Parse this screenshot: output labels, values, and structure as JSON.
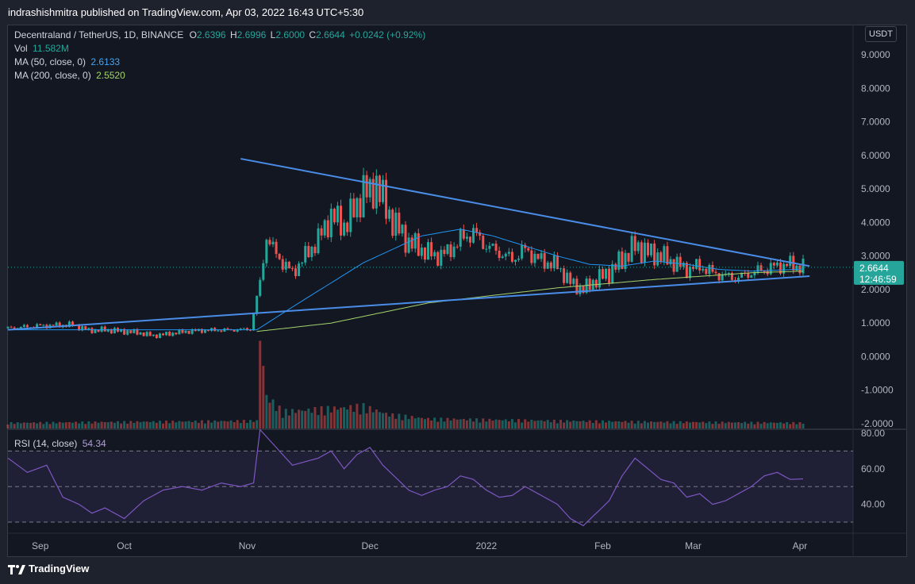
{
  "header": {
    "publisher": "indrashishmitra published on TradingView.com, Apr 03, 2022 16:43 UTC+5:30"
  },
  "legend": {
    "symbol": "Decentraland / TetherUS, 1D, BINANCE",
    "o_label": "O",
    "o_value": "2.6396",
    "h_label": "H",
    "h_value": "2.6996",
    "l_label": "L",
    "l_value": "2.6000",
    "c_label": "C",
    "c_value": "2.6644",
    "change": "+0.0242 (+0.92%)",
    "vol_label": "Vol",
    "vol_value": "11.582M",
    "ma50_label": "MA (50, close, 0)",
    "ma50_value": "2.6133",
    "ma200_label": "MA (200, close, 0)",
    "ma200_value": "2.5520",
    "rsi_label": "RSI (14, close)",
    "rsi_value": "54.34"
  },
  "currency": "USDT",
  "last_price": {
    "value": "2.6644",
    "countdown": "12:46:59"
  },
  "footer": {
    "brand": "TradingView"
  },
  "colors": {
    "up": "#26a69a",
    "down": "#ef5350",
    "ma50": "#2962ff",
    "ma200": "#a5d36b",
    "trendline": "#4a8de8",
    "rsi": "#7e57c2"
  },
  "chart_data": {
    "type": "candlestick",
    "price_axis": {
      "ticks": [
        "9.0000",
        "8.0000",
        "7.0000",
        "6.0000",
        "5.0000",
        "4.0000",
        "3.0000",
        "2.0000",
        "1.0000",
        "0.0000",
        "-1.0000",
        "-2.0000"
      ],
      "ylim": [
        -2.0,
        9.0
      ]
    },
    "rsi_axis": {
      "ticks": [
        "80.00",
        "60.00",
        "40.00"
      ],
      "ylim": [
        26,
        80
      ],
      "bands": [
        70,
        50,
        30
      ]
    },
    "time_axis": [
      "Sep",
      "Oct",
      "Nov",
      "Dec",
      "2022",
      "Feb",
      "Mar",
      "Apr"
    ],
    "price_path": [
      [
        0,
        0.85
      ],
      [
        10,
        0.92
      ],
      [
        20,
        0.95
      ],
      [
        25,
        0.78
      ],
      [
        30,
        0.8
      ],
      [
        40,
        0.72
      ],
      [
        45,
        0.62
      ],
      [
        55,
        0.75
      ],
      [
        60,
        0.78
      ],
      [
        70,
        0.8
      ],
      [
        75,
        0.82
      ],
      [
        78,
        2.2
      ],
      [
        80,
        3.6
      ],
      [
        82,
        3.2
      ],
      [
        85,
        2.8
      ],
      [
        88,
        2.5
      ],
      [
        92,
        3.0
      ],
      [
        96,
        3.5
      ],
      [
        100,
        4.2
      ],
      [
        104,
        3.9
      ],
      [
        108,
        4.5
      ],
      [
        110,
        5.0
      ],
      [
        112,
        4.8
      ],
      [
        114,
        5.2
      ],
      [
        117,
        4.4
      ],
      [
        120,
        3.9
      ],
      [
        124,
        3.4
      ],
      [
        128,
        3.2
      ],
      [
        132,
        3.0
      ],
      [
        136,
        3.1
      ],
      [
        140,
        3.5
      ],
      [
        144,
        3.7
      ],
      [
        148,
        3.3
      ],
      [
        152,
        3.1
      ],
      [
        156,
        2.9
      ],
      [
        160,
        3.2
      ],
      [
        164,
        2.9
      ],
      [
        170,
        2.7
      ],
      [
        174,
        2.2
      ],
      [
        178,
        2.0
      ],
      [
        182,
        2.3
      ],
      [
        186,
        2.5
      ],
      [
        190,
        2.9
      ],
      [
        194,
        3.3
      ],
      [
        198,
        3.1
      ],
      [
        202,
        3.0
      ],
      [
        206,
        2.8
      ],
      [
        210,
        2.6
      ],
      [
        214,
        2.7
      ],
      [
        218,
        2.5
      ],
      [
        222,
        2.4
      ],
      [
        226,
        2.35
      ],
      [
        230,
        2.5
      ],
      [
        234,
        2.6
      ],
      [
        238,
        2.7
      ],
      [
        242,
        2.75
      ],
      [
        246,
        2.66
      ]
    ],
    "volume_path": [
      [
        0,
        0.04
      ],
      [
        77,
        0.06
      ],
      [
        78,
        0.9
      ],
      [
        80,
        0.3
      ],
      [
        85,
        0.15
      ],
      [
        100,
        0.18
      ],
      [
        110,
        0.2
      ],
      [
        118,
        0.12
      ],
      [
        130,
        0.08
      ],
      [
        170,
        0.06
      ],
      [
        200,
        0.05
      ],
      [
        246,
        0.04
      ]
    ],
    "rsi_path": [
      [
        0,
        66
      ],
      [
        6,
        58
      ],
      [
        12,
        62
      ],
      [
        17,
        44
      ],
      [
        22,
        40
      ],
      [
        26,
        35
      ],
      [
        30,
        38
      ],
      [
        36,
        32
      ],
      [
        42,
        42
      ],
      [
        48,
        48
      ],
      [
        54,
        50
      ],
      [
        60,
        48
      ],
      [
        66,
        52
      ],
      [
        72,
        50
      ],
      [
        76,
        52
      ],
      [
        78,
        82
      ],
      [
        81,
        76
      ],
      [
        84,
        70
      ],
      [
        88,
        62
      ],
      [
        92,
        64
      ],
      [
        96,
        66
      ],
      [
        100,
        70
      ],
      [
        104,
        60
      ],
      [
        108,
        68
      ],
      [
        112,
        72
      ],
      [
        116,
        62
      ],
      [
        120,
        55
      ],
      [
        124,
        48
      ],
      [
        128,
        45
      ],
      [
        132,
        48
      ],
      [
        136,
        50
      ],
      [
        140,
        56
      ],
      [
        144,
        54
      ],
      [
        148,
        48
      ],
      [
        152,
        44
      ],
      [
        156,
        45
      ],
      [
        160,
        50
      ],
      [
        164,
        46
      ],
      [
        170,
        40
      ],
      [
        174,
        32
      ],
      [
        178,
        28
      ],
      [
        182,
        35
      ],
      [
        186,
        42
      ],
      [
        190,
        56
      ],
      [
        194,
        66
      ],
      [
        198,
        60
      ],
      [
        202,
        54
      ],
      [
        206,
        52
      ],
      [
        210,
        44
      ],
      [
        214,
        46
      ],
      [
        218,
        40
      ],
      [
        222,
        42
      ],
      [
        226,
        46
      ],
      [
        230,
        50
      ],
      [
        234,
        56
      ],
      [
        238,
        58
      ],
      [
        242,
        54
      ],
      [
        246,
        54.34
      ]
    ],
    "ma50_path": [
      [
        0,
        0.8
      ],
      [
        77,
        0.8
      ],
      [
        90,
        1.6
      ],
      [
        110,
        2.8
      ],
      [
        128,
        3.6
      ],
      [
        140,
        3.8
      ],
      [
        150,
        3.6
      ],
      [
        160,
        3.3
      ],
      [
        170,
        3.0
      ],
      [
        180,
        2.75
      ],
      [
        190,
        2.7
      ],
      [
        200,
        2.85
      ],
      [
        210,
        2.75
      ],
      [
        220,
        2.6
      ],
      [
        230,
        2.55
      ],
      [
        246,
        2.61
      ]
    ],
    "ma200_path": [
      [
        77,
        0.75
      ],
      [
        100,
        1.0
      ],
      [
        130,
        1.6
      ],
      [
        170,
        2.05
      ],
      [
        200,
        2.3
      ],
      [
        230,
        2.5
      ],
      [
        246,
        2.55
      ]
    ],
    "trendlines": [
      {
        "from": [
          72,
          5.9
        ],
        "to": [
          248,
          2.7
        ]
      },
      {
        "from": [
          0,
          0.8
        ],
        "to": [
          248,
          2.4
        ]
      }
    ]
  }
}
